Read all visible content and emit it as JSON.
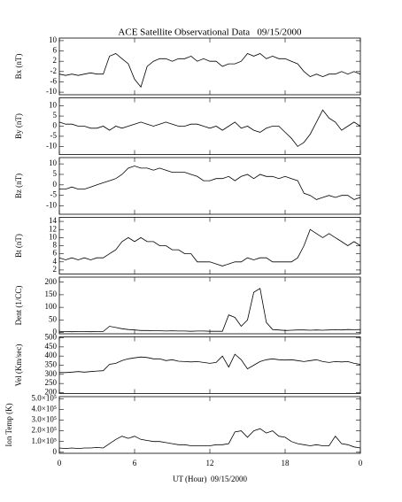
{
  "chart_data": [
    {
      "type": "line",
      "title": "ACE Satellite Observational Data   09/15/2000",
      "ylabel": "Bx (nT)",
      "color": "#000000",
      "x": [
        0,
        0.5,
        1,
        1.5,
        2,
        2.5,
        3,
        3.5,
        4,
        4.5,
        5,
        5.5,
        6,
        6.5,
        7,
        7.5,
        8,
        8.5,
        9,
        9.5,
        10,
        10.5,
        11,
        11.5,
        12,
        12.5,
        13,
        13.5,
        14,
        14.5,
        15,
        15.5,
        16,
        16.5,
        17,
        17.5,
        18,
        18.5,
        19,
        19.5,
        20,
        20.5,
        21,
        21.5,
        22,
        22.5,
        23,
        23.5,
        24
      ],
      "values": [
        -3,
        -3.5,
        -3,
        -3.5,
        -3,
        -2.5,
        -3,
        -3,
        4,
        5,
        3,
        1,
        -5,
        -8,
        0,
        2,
        3,
        3,
        2,
        3,
        3,
        4,
        2,
        3,
        2,
        2,
        0,
        1,
        1,
        2,
        5,
        4,
        5,
        3,
        4,
        3,
        3,
        2,
        1,
        -2,
        -4,
        -3,
        -4,
        -3,
        -3,
        -2,
        -3,
        -2,
        -3
      ],
      "xlim": [
        0,
        24
      ],
      "ylim": [
        -11,
        11
      ],
      "yticks": [
        -10,
        -6,
        -2,
        2,
        6,
        10
      ]
    },
    {
      "type": "line",
      "ylabel": "By (nT)",
      "color": "#000000",
      "x": [
        0,
        0.5,
        1,
        1.5,
        2,
        2.5,
        3,
        3.5,
        4,
        4.5,
        5,
        5.5,
        6,
        6.5,
        7,
        7.5,
        8,
        8.5,
        9,
        9.5,
        10,
        10.5,
        11,
        11.5,
        12,
        12.5,
        13,
        13.5,
        14,
        14.5,
        15,
        15.5,
        16,
        16.5,
        17,
        17.5,
        18,
        18.5,
        19,
        19.5,
        20,
        20.5,
        21,
        21.5,
        22,
        22.5,
        23,
        23.5,
        24
      ],
      "values": [
        2,
        1,
        1,
        0,
        0,
        -1,
        -1,
        0,
        -2,
        0,
        -1,
        0,
        1,
        2,
        1,
        0,
        1,
        2,
        1,
        0,
        0,
        1,
        1,
        0,
        -1,
        0,
        -2,
        0,
        2,
        -1,
        0,
        -2,
        -3,
        -1,
        0,
        0,
        -3,
        -6,
        -10,
        -8,
        -4,
        2,
        8,
        4,
        2,
        -2,
        0,
        2,
        0
      ],
      "xlim": [
        0,
        24
      ],
      "ylim": [
        -14,
        14
      ],
      "yticks": [
        -10,
        -5,
        0,
        5,
        10
      ]
    },
    {
      "type": "line",
      "ylabel": "Bz (nT)",
      "color": "#000000",
      "x": [
        0,
        0.5,
        1,
        1.5,
        2,
        2.5,
        3,
        3.5,
        4,
        4.5,
        5,
        5.5,
        6,
        6.5,
        7,
        7.5,
        8,
        8.5,
        9,
        9.5,
        10,
        10.5,
        11,
        11.5,
        12,
        12.5,
        13,
        13.5,
        14,
        14.5,
        15,
        15.5,
        16,
        16.5,
        17,
        17.5,
        18,
        18.5,
        19,
        19.5,
        20,
        20.5,
        21,
        21.5,
        22,
        22.5,
        23,
        23.5,
        24
      ],
      "values": [
        -2,
        -2,
        -1,
        -2,
        -2,
        -1,
        0,
        1,
        2,
        3,
        5,
        8,
        9,
        8,
        8,
        7,
        8,
        7,
        6,
        6,
        6,
        5,
        4,
        2,
        2,
        3,
        3,
        4,
        2,
        4,
        5,
        3,
        5,
        4,
        4,
        3,
        4,
        3,
        2,
        -4,
        -5,
        -7,
        -6,
        -5,
        -6,
        -5,
        -5,
        -7,
        -6
      ],
      "xlim": [
        0,
        24
      ],
      "ylim": [
        -14,
        13
      ],
      "yticks": [
        -10,
        -5,
        0,
        5,
        10
      ]
    },
    {
      "type": "line",
      "ylabel": "Bt (nT)",
      "color": "#000000",
      "x": [
        0,
        0.5,
        1,
        1.5,
        2,
        2.5,
        3,
        3.5,
        4,
        4.5,
        5,
        5.5,
        6,
        6.5,
        7,
        7.5,
        8,
        8.5,
        9,
        9.5,
        10,
        10.5,
        11,
        11.5,
        12,
        12.5,
        13,
        13.5,
        14,
        14.5,
        15,
        15.5,
        16,
        16.5,
        17,
        17.5,
        18,
        18.5,
        19,
        19.5,
        20,
        20.5,
        21,
        21.5,
        22,
        22.5,
        23,
        23.5,
        24
      ],
      "values": [
        5,
        4.5,
        5,
        4.5,
        5,
        4.5,
        5,
        5,
        6,
        7,
        9,
        10,
        9,
        10,
        9,
        9,
        8,
        8,
        7,
        7,
        6,
        6,
        4,
        4,
        4,
        3.5,
        3,
        3.5,
        4,
        4,
        5,
        4.5,
        5,
        5,
        4,
        4,
        4,
        4,
        5,
        8,
        12,
        11,
        10,
        11,
        10,
        9,
        8,
        9,
        8
      ],
      "xlim": [
        0,
        24
      ],
      "ylim": [
        1,
        15
      ],
      "yticks": [
        2,
        4,
        6,
        8,
        10,
        12,
        14
      ]
    },
    {
      "type": "line",
      "ylabel": "Dent (1/CC)",
      "color": "#000000",
      "x": [
        0,
        0.5,
        1,
        1.5,
        2,
        2.5,
        3,
        3.5,
        4,
        4.5,
        5,
        5.5,
        6,
        6.5,
        7,
        7.5,
        8,
        8.5,
        9,
        9.5,
        10,
        10.5,
        11,
        11.5,
        12,
        12.5,
        13,
        13.5,
        14,
        14.5,
        15,
        15.5,
        16,
        16.5,
        17,
        17.5,
        18,
        18.5,
        19,
        19.5,
        20,
        20.5,
        21,
        21.5,
        22,
        22.5,
        23,
        23.5,
        24
      ],
      "values": [
        4,
        4,
        3,
        4,
        4,
        3,
        4,
        4,
        25,
        20,
        15,
        12,
        10,
        8,
        8,
        7,
        7,
        6,
        7,
        6,
        6,
        5,
        6,
        6,
        5,
        5,
        5,
        70,
        60,
        25,
        50,
        160,
        175,
        40,
        12,
        10,
        8,
        9,
        10,
        10,
        9,
        10,
        9,
        10,
        11,
        10,
        12,
        11,
        12
      ],
      "xlim": [
        0,
        24
      ],
      "ylim": [
        -5,
        220
      ],
      "yticks": [
        0,
        50,
        100,
        150,
        200
      ]
    },
    {
      "type": "line",
      "ylabel": "Vel (Km/sec)",
      "color": "#000000",
      "x": [
        0,
        0.5,
        1,
        1.5,
        2,
        2.5,
        3,
        3.5,
        4,
        4.5,
        5,
        5.5,
        6,
        6.5,
        7,
        7.5,
        8,
        8.5,
        9,
        9.5,
        10,
        10.5,
        11,
        11.5,
        12,
        12.5,
        13,
        13.5,
        14,
        14.5,
        15,
        15.5,
        16,
        16.5,
        17,
        17.5,
        18,
        18.5,
        19,
        19.5,
        20,
        20.5,
        21,
        21.5,
        22,
        22.5,
        23,
        23.5,
        24
      ],
      "values": [
        310,
        310,
        312,
        315,
        312,
        315,
        318,
        320,
        355,
        360,
        375,
        385,
        390,
        395,
        392,
        385,
        385,
        375,
        380,
        372,
        370,
        368,
        370,
        365,
        360,
        365,
        400,
        340,
        410,
        380,
        330,
        350,
        370,
        380,
        385,
        380,
        378,
        380,
        375,
        370,
        375,
        380,
        370,
        365,
        370,
        368,
        370,
        360,
        355
      ],
      "xlim": [
        0,
        24
      ],
      "ylim": [
        195,
        505
      ],
      "yticks": [
        200,
        250,
        300,
        350,
        400,
        450,
        500
      ]
    },
    {
      "type": "line",
      "ylabel": "Ion Temp (K)",
      "xlabel": "UT (Hour)  09/15/2000",
      "color": "#000000",
      "x": [
        0,
        0.5,
        1,
        1.5,
        2,
        2.5,
        3,
        3.5,
        4,
        4.5,
        5,
        5.5,
        6,
        6.5,
        7,
        7.5,
        8,
        8.5,
        9,
        9.5,
        10,
        10.5,
        11,
        11.5,
        12,
        12.5,
        13,
        13.5,
        14,
        14.5,
        15,
        15.5,
        16,
        16.5,
        17,
        17.5,
        18,
        18.5,
        19,
        19.5,
        20,
        20.5,
        21,
        21.5,
        22,
        22.5,
        23,
        23.5,
        24
      ],
      "values": [
        40000,
        35000,
        40000,
        35000,
        40000,
        40000,
        45000,
        40000,
        80000,
        120000,
        150000,
        130000,
        150000,
        120000,
        110000,
        100000,
        100000,
        90000,
        80000,
        70000,
        70000,
        60000,
        60000,
        60000,
        60000,
        70000,
        70000,
        80000,
        190000,
        200000,
        140000,
        200000,
        220000,
        180000,
        200000,
        150000,
        140000,
        100000,
        80000,
        70000,
        60000,
        70000,
        60000,
        60000,
        150000,
        80000,
        70000,
        50000,
        40000
      ],
      "xlim": [
        0,
        24
      ],
      "ylim": [
        -10000,
        520000
      ],
      "yticks": [
        0,
        {
          "value": 100000,
          "label": "1.0×10⁵"
        },
        {
          "value": 200000,
          "label": "2.0×10⁵"
        },
        {
          "value": 300000,
          "label": "3.0×10⁵"
        },
        {
          "value": 400000,
          "label": "4.0×10⁵"
        },
        {
          "value": 500000,
          "label": "5.0×10⁵"
        }
      ],
      "xticks": [
        0,
        6,
        12,
        18,
        {
          "value": 24,
          "label": "0"
        }
      ]
    }
  ]
}
